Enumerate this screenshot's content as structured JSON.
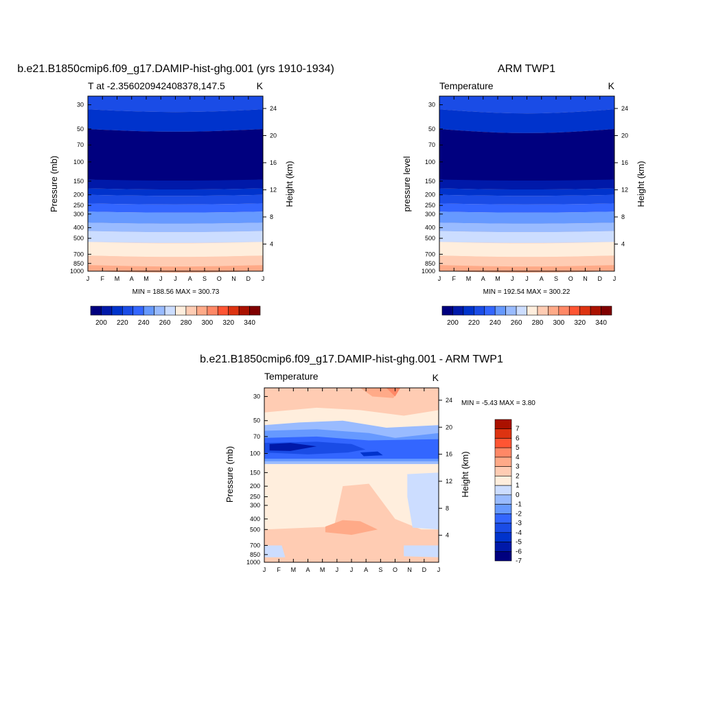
{
  "panels": [
    {
      "title": "b.e21.B1850cmip6.f09_g17.DAMIP-hist-ghg.001 (yrs 1910-1934)",
      "left_string": "T at -2.356020942408378,147.5",
      "right_string": "K",
      "ylabel_left": "Pressure (mb)",
      "ylabel_right": "Height (km)",
      "stats": "MIN = 188.56 MAX = 300.73"
    },
    {
      "title": "ARM TWP1",
      "left_string": "Temperature",
      "right_string": "K",
      "ylabel_left": "pressure level",
      "ylabel_right": "Height (km)",
      "stats": "MIN = 192.54 MAX = 300.22"
    },
    {
      "title": "b.e21.B1850cmip6.f09_g17.DAMIP-hist-ghg.001 - ARM TWP1",
      "left_string": "Temperature",
      "right_string": "K",
      "ylabel_left": "Pressure (mb)",
      "ylabel_right": "Height (km)",
      "stats": "MIN =  -5.43 MAX =   3.80"
    }
  ],
  "colors": {
    "abs_scale": [
      "#00007f",
      "#0019a9",
      "#0033cc",
      "#1a4ce6",
      "#3366ff",
      "#6699ff",
      "#99bbff",
      "#ccddff",
      "#ffeedd",
      "#ffccb3",
      "#ffaa88",
      "#ff8866",
      "#ff5533",
      "#dd3311",
      "#aa1100",
      "#7f0000"
    ],
    "diff_scale": [
      "#00007f",
      "#0019a9",
      "#0033cc",
      "#1a4ce6",
      "#3366ff",
      "#6699ff",
      "#99bbff",
      "#ccddff",
      "#ffeedd",
      "#ffccb3",
      "#ffaa88",
      "#ff8866",
      "#ff5533",
      "#dd3311",
      "#aa1100"
    ]
  },
  "chart_data": [
    {
      "type": "heatmap",
      "title": "b.e21.B1850cmip6.f09_g17.DAMIP-hist-ghg.001 (yrs 1910-1934)",
      "x_ticks": [
        "J",
        "F",
        "M",
        "A",
        "M",
        "J",
        "J",
        "A",
        "S",
        "O",
        "N",
        "D",
        "J"
      ],
      "pressure_ticks_mb": [
        30,
        50,
        70,
        100,
        150,
        200,
        250,
        300,
        400,
        500,
        700,
        850,
        1000
      ],
      "height_ticks_km": [
        4,
        8,
        12,
        16,
        20,
        24
      ],
      "colorbar_levels": [
        195,
        200,
        205,
        210,
        215,
        220,
        225,
        230,
        235,
        240,
        245,
        250,
        255,
        260,
        265,
        270,
        275,
        280,
        285,
        290,
        295,
        300,
        305,
        310,
        315,
        320,
        325,
        330,
        335,
        340
      ],
      "colorbar_labels": [
        "200",
        "220",
        "240",
        "260",
        "280",
        "300",
        "320",
        "340"
      ],
      "min": 188.56,
      "max": 300.73,
      "units": "K"
    },
    {
      "type": "heatmap",
      "title": "ARM TWP1",
      "x_ticks": [
        "J",
        "F",
        "M",
        "A",
        "M",
        "J",
        "J",
        "A",
        "S",
        "O",
        "N",
        "D",
        "J"
      ],
      "pressure_ticks_mb": [
        30,
        50,
        70,
        100,
        150,
        200,
        250,
        300,
        400,
        500,
        700,
        850,
        1000
      ],
      "height_ticks_km": [
        4,
        8,
        12,
        16,
        20,
        24
      ],
      "colorbar_labels": [
        "200",
        "220",
        "240",
        "260",
        "280",
        "300",
        "320",
        "340"
      ],
      "min": 192.54,
      "max": 300.22,
      "units": "K"
    },
    {
      "type": "heatmap",
      "title": "b.e21.B1850cmip6.f09_g17.DAMIP-hist-ghg.001 - ARM TWP1",
      "x_ticks": [
        "J",
        "F",
        "M",
        "A",
        "M",
        "J",
        "J",
        "A",
        "S",
        "O",
        "N",
        "D",
        "J"
      ],
      "pressure_ticks_mb": [
        30,
        50,
        70,
        100,
        150,
        200,
        250,
        300,
        400,
        500,
        700,
        850,
        1000
      ],
      "height_ticks_km": [
        4,
        8,
        12,
        16,
        20,
        24
      ],
      "colorbar_labels": [
        "7",
        "6",
        "5",
        "4",
        "3",
        "2",
        "1",
        "0",
        "-1",
        "-2",
        "-3",
        "-4",
        "-5",
        "-6",
        "-7"
      ],
      "min": -5.43,
      "max": 3.8,
      "units": "K"
    }
  ]
}
